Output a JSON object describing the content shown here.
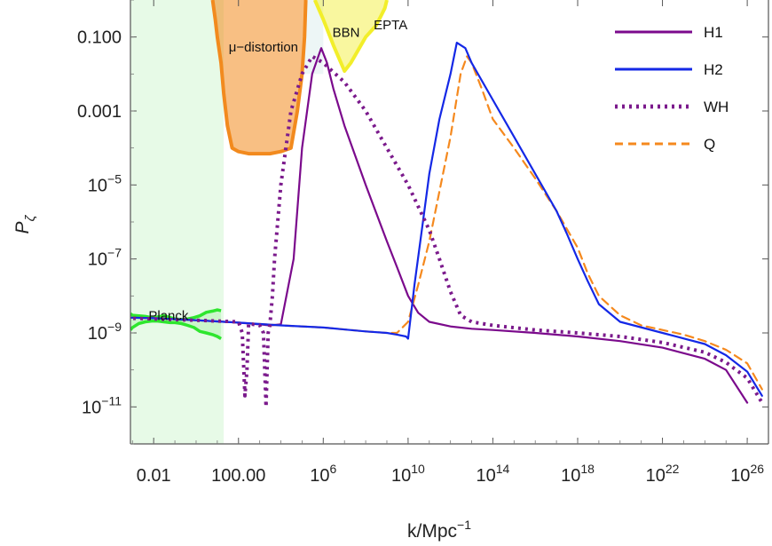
{
  "chart_data": {
    "type": "line",
    "title": "",
    "xlabel": "k/Mpc",
    "xlabel_sup": "−1",
    "ylabel": "P",
    "ylabel_sub": "ζ",
    "xscale": "log",
    "yscale": "log",
    "xlim": [
      0.0008,
      1e+27
    ],
    "ylim": [
      1e-12,
      1
    ],
    "grid": false,
    "legend_position": "top-right",
    "colors": {
      "H1": "#7b0a8c",
      "H2": "#1428e6",
      "WH": "#7b1a8c",
      "Q": "#f5891e",
      "planck": "#2ee62e",
      "planck_band": "#dff8df",
      "mu_distortion": "#f28a1e",
      "bbn": "#e8f4f4",
      "epta": "#f2ee2a"
    },
    "x_ticks": [
      {
        "value": 0.01,
        "label": "0.01"
      },
      {
        "value": 100,
        "label": "100.00"
      },
      {
        "value": 1000000.0,
        "base": "10",
        "exp": "6"
      },
      {
        "value": 10000000000.0,
        "base": "10",
        "exp": "10"
      },
      {
        "value": 100000000000000.0,
        "base": "10",
        "exp": "14"
      },
      {
        "value": 1e+18,
        "base": "10",
        "exp": "18"
      },
      {
        "value": 1e+22,
        "base": "10",
        "exp": "22"
      },
      {
        "value": 1e+26,
        "base": "10",
        "exp": "26"
      }
    ],
    "y_ticks": [
      {
        "value": 0.1,
        "label": "0.100"
      },
      {
        "value": 0.001,
        "label": "0.001"
      },
      {
        "value": 1e-05,
        "base": "10",
        "exp": "−5"
      },
      {
        "value": 1e-07,
        "base": "10",
        "exp": "−7"
      },
      {
        "value": 1e-09,
        "base": "10",
        "exp": "−9"
      },
      {
        "value": 1e-11,
        "base": "10",
        "exp": "−11"
      }
    ],
    "annotations": [
      {
        "text": "Planck",
        "x": 0.05,
        "y": 2.2e-09
      },
      {
        "text": "μ−distortion",
        "x": 1500,
        "y": 0.04
      },
      {
        "text": "BBN",
        "x": 12000000.0,
        "y": 0.1
      },
      {
        "text": "EPTA",
        "x": 1500000000.0,
        "y": 0.16
      }
    ],
    "series": [
      {
        "name": "H1",
        "style": "solid",
        "width": 2.2,
        "x": [
          0.0005,
          0.01,
          1,
          100,
          1000,
          3000,
          10000.0,
          40000.0,
          100000.0,
          300000.0,
          800000.0,
          1500000.0,
          3000000.0,
          10000000.0,
          100000000.0,
          1000000000.0,
          3000000000.0,
          10000000000.0,
          30000000000.0,
          100000000000.0,
          1000000000000.0,
          10000000000000.0,
          100000000000000.0,
          1e+16,
          1e+18,
          1e+20,
          1e+22,
          1e+24,
          1e+25,
          1e+26
        ],
        "y": [
          2.6e-09,
          2.5e-09,
          2.2e-09,
          1.9e-09,
          1.7e-09,
          1.6e-09,
          1.7e-09,
          1e-07,
          0.0001,
          0.01,
          0.05,
          0.02,
          0.004,
          0.0004,
          1e-05,
          3e-07,
          6e-08,
          1e-08,
          3.5e-09,
          2e-09,
          1.5e-09,
          1.3e-09,
          1.2e-09,
          1e-09,
          8e-10,
          6e-10,
          4e-10,
          2e-10,
          1e-10,
          1.3e-11
        ]
      },
      {
        "name": "H2",
        "style": "solid",
        "width": 2.2,
        "x": [
          0.0005,
          0.01,
          1,
          100,
          10000.0,
          1000000.0,
          100000000.0,
          1000000000.0,
          3000000000.0,
          8000000000.0,
          10000000000.0,
          20000000000.0,
          50000000000.0,
          100000000000.0,
          300000000000.0,
          1000000000000.0,
          2000000000000.0,
          5000000000000.0,
          10000000000000.0,
          100000000000000.0,
          1000000000000000.0,
          1e+16,
          1e+17,
          3e+17,
          1e+18,
          3e+18,
          1e+19,
          1e+20,
          1e+22,
          1e+24,
          1e+25,
          1e+26,
          5e+26
        ],
        "y": [
          2.6e-09,
          2.5e-09,
          2.2e-09,
          1.9e-09,
          1.6e-09,
          1.4e-09,
          1.1e-09,
          1e-09,
          9e-10,
          8e-10,
          7e-10,
          2e-08,
          1e-06,
          2e-05,
          0.0006,
          0.01,
          0.07,
          0.05,
          0.02,
          0.002,
          0.0002,
          2e-05,
          2e-06,
          5e-07,
          1e-07,
          2.5e-08,
          6e-09,
          2e-09,
          1e-09,
          5e-10,
          2.5e-10,
          9e-11,
          2e-11
        ]
      },
      {
        "name": "WH",
        "style": "dotted",
        "width": 4,
        "x": [
          0.0005,
          0.01,
          1,
          10,
          100,
          150,
          200,
          250,
          300,
          500,
          1000,
          1500,
          2000,
          2500,
          3000,
          4000,
          5000,
          10000.0,
          30000.0,
          100000.0,
          300000.0,
          1000000.0,
          10000000.0,
          100000000.0,
          1000000000.0,
          10000000000.0,
          100000000000.0,
          300000000000.0,
          1000000000000.0,
          3000000000000.0,
          10000000000000.0,
          100000000000000.0,
          1e+16,
          1e+18,
          1e+20,
          1e+22,
          1e+24,
          1e+25,
          1e+26,
          5e+26
        ],
        "y": [
          2.5e-09,
          2.4e-09,
          2.2e-09,
          2.1e-09,
          2e-09,
          1e-09,
          2e-11,
          1e-10,
          1.8e-09,
          1.7e-09,
          1.6e-09,
          1e-09,
          1e-11,
          1e-09,
          1.6e-09,
          1e-08,
          1e-07,
          1e-05,
          0.001,
          0.01,
          0.03,
          0.02,
          0.006,
          0.001,
          0.0001,
          1e-05,
          6e-07,
          1e-07,
          1.3e-08,
          3e-09,
          2e-09,
          1.6e-09,
          1.2e-09,
          1e-09,
          8e-10,
          5.5e-10,
          3e-10,
          1.6e-10,
          6e-11,
          1.3e-11
        ]
      },
      {
        "name": "Q",
        "style": "dashed",
        "width": 2.2,
        "x": [
          0.0005,
          0.01,
          1,
          100,
          10000.0,
          1000000.0,
          100000000.0,
          1000000000.0,
          3000000000.0,
          10000000000.0,
          30000000000.0,
          100000000000.0,
          1000000000000.0,
          3000000000000.0,
          6000000000000.0,
          10000000000000.0,
          30000000000000.0,
          100000000000000.0,
          1000000000000000.0,
          1e+16,
          1e+17,
          1e+18,
          3e+18,
          1e+19,
          1e+20,
          1e+21,
          1e+22,
          1e+23,
          1e+24,
          1e+25,
          1e+26,
          5e+26
        ],
        "y": [
          2.6e-09,
          2.5e-09,
          2.2e-09,
          1.9e-09,
          1.6e-09,
          1.4e-09,
          1.1e-09,
          1e-09,
          1e-09,
          2e-09,
          2e-08,
          3e-07,
          0.0002,
          0.01,
          0.03,
          0.02,
          0.004,
          0.0006,
          0.0001,
          1.5e-05,
          2e-06,
          2e-07,
          4e-08,
          1e-08,
          3e-09,
          1.6e-09,
          1.2e-09,
          9e-10,
          6e-10,
          3.5e-10,
          1.5e-10,
          3e-11
        ]
      }
    ],
    "regions": [
      {
        "name": "planck_band",
        "x": [
          0.0008,
          20
        ],
        "y": [
          1e-12,
          1
        ]
      },
      {
        "name": "planck_data",
        "x": [
          0.0008,
          0.001,
          0.002,
          0.004,
          0.008,
          0.015,
          0.03,
          0.06,
          0.1,
          0.2,
          0.4,
          0.8,
          1.5,
          3,
          6,
          10,
          15
        ],
        "y_high": [
          3.3e-09,
          3e-09,
          2.9e-09,
          2.8e-09,
          2.6e-09,
          2.7e-09,
          2.9e-09,
          2.6e-09,
          2.4e-09,
          2.3e-09,
          2.4e-09,
          2.6e-09,
          2.9e-09,
          3.6e-09,
          3.9e-09,
          4.2e-09,
          4e-09
        ],
        "y_low": [
          1.2e-09,
          1.4e-09,
          1.8e-09,
          2e-09,
          2.1e-09,
          2.1e-09,
          2e-09,
          1.9e-09,
          1.9e-09,
          1.8e-09,
          1.6e-09,
          1.4e-09,
          1.1e-09,
          1e-09,
          9e-10,
          8e-10,
          7e-10
        ]
      },
      {
        "name": "mu_distortion",
        "x": [
          6,
          8,
          10,
          15,
          20,
          30,
          50,
          100,
          300,
          1000,
          3000,
          10000.0,
          30000.0,
          60000.0,
          100000.0,
          130000.0,
          150000.0
        ],
        "y": [
          1,
          0.3,
          0.1,
          0.02,
          0.003,
          0.0004,
          0.0001,
          8e-05,
          7e-05,
          7e-05,
          7e-05,
          8e-05,
          0.0001,
          0.001,
          0.01,
          0.1,
          1
        ]
      },
      {
        "name": "bbn",
        "x": [
          130000.0,
          1000000.0
        ],
        "y": [
          1,
          0.01
        ]
      },
      {
        "name": "epta",
        "x": [
          400000.0,
          1000000.0,
          3000000.0,
          10000000.0,
          20000000.0,
          50000000.0,
          100000000.0,
          300000000.0,
          500000000.0,
          800000000.0,
          1000000000.0
        ],
        "y": [
          1,
          0.3,
          0.06,
          0.012,
          0.02,
          0.05,
          0.1,
          0.2,
          0.35,
          0.6,
          1
        ]
      }
    ]
  }
}
